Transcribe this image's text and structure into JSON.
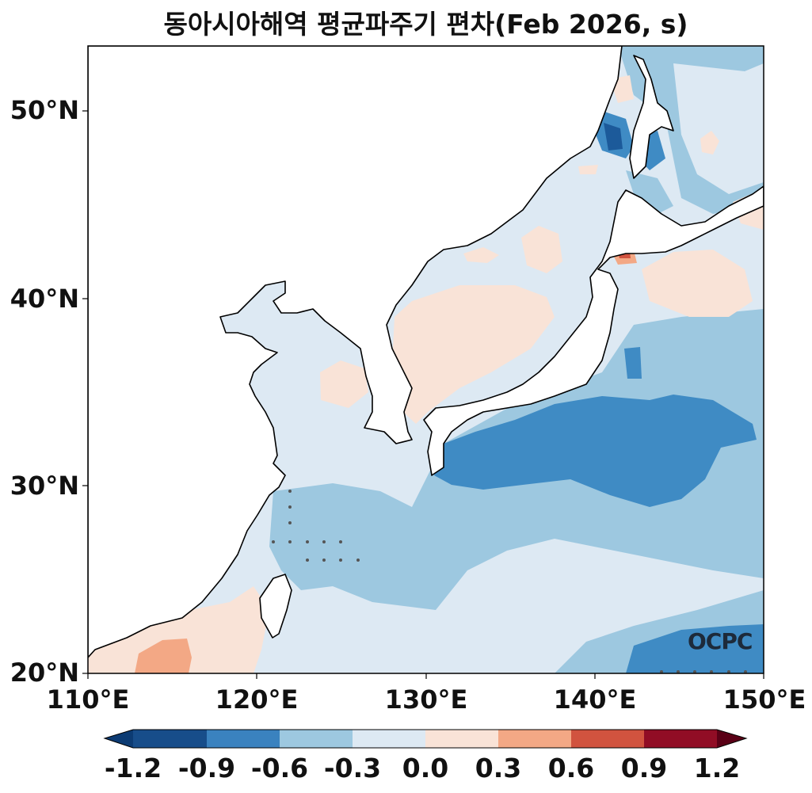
{
  "title": "동아시아해역 평균파주기 편차(Feb 2026, s)",
  "map": {
    "lon_range": [
      110,
      150
    ],
    "lat_range": [
      20,
      53.5
    ],
    "lat_ticks": [
      "20°N",
      "30°N",
      "40°N",
      "50°N"
    ],
    "lon_ticks": [
      "110°E",
      "120°E",
      "130°E",
      "140°E",
      "150°E"
    ]
  },
  "colorbar": {
    "labels": [
      "-1.2",
      "-0.9",
      "-0.6",
      "-0.3",
      "0.0",
      "0.3",
      "0.6",
      "0.9",
      "1.2"
    ],
    "colors": [
      "#0c3b73",
      "#1c5a9a",
      "#3f8bc4",
      "#9dc8e0",
      "#dde9f3",
      "#f9e3d7",
      "#f3a885",
      "#d1533f",
      "#910d25",
      "#5a0016"
    ]
  },
  "logo": "OCPC"
}
